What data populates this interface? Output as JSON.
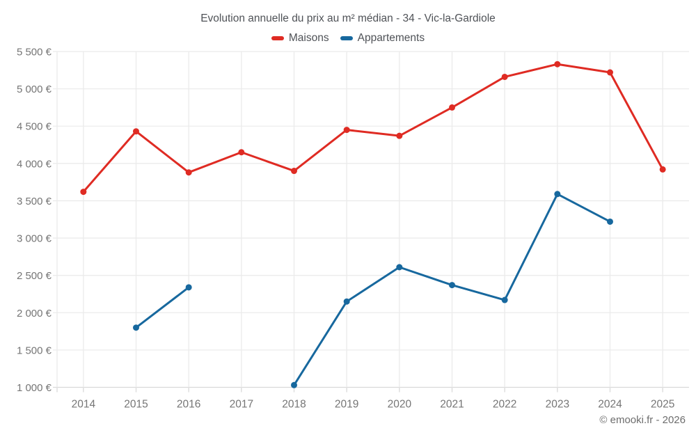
{
  "chart": {
    "title": "Evolution annuelle du prix au m² médian - 34 - Vic-la-Gardiole"
  },
  "footer": {
    "copyright": "© emooki.fr - 2026"
  },
  "colors": {
    "maisons": "#df2b23",
    "appartements": "#17689e",
    "gridline": "#ebebeb",
    "axis_line": "#d9d9d9",
    "tick": "#d9d9d9",
    "axis_label": "#757575",
    "title_text": "#4f5257"
  },
  "chart_data": {
    "type": "line",
    "title": "Evolution annuelle du prix au m² médian - 34 - Vic-la-Gardiole",
    "categories": [
      "2014",
      "2015",
      "2016",
      "2017",
      "2018",
      "2019",
      "2020",
      "2021",
      "2022",
      "2023",
      "2024",
      "2025"
    ],
    "series": [
      {
        "name": "Maisons",
        "color": "#df2b23",
        "values": [
          3620,
          4430,
          3880,
          4150,
          3900,
          4450,
          4370,
          4750,
          5160,
          5330,
          5220,
          3920
        ]
      },
      {
        "name": "Appartements",
        "color": "#17689e",
        "values": [
          null,
          1800,
          2340,
          null,
          1030,
          2150,
          2610,
          2370,
          2170,
          3590,
          3220,
          null
        ]
      }
    ],
    "xlabel": "",
    "ylabel": "",
    "ylim": [
      1000,
      5500
    ],
    "y_ticks": [
      1000,
      1500,
      2000,
      2500,
      3000,
      3500,
      4000,
      4500,
      5000,
      5500
    ],
    "y_tick_labels": [
      "1 000 €",
      "1 500 €",
      "2 000 €",
      "2 500 €",
      "3 000 €",
      "3 500 €",
      "4 000 €",
      "4 500 €",
      "5 000 €",
      "5 500 €"
    ],
    "grid": true,
    "legend_position": "top"
  }
}
